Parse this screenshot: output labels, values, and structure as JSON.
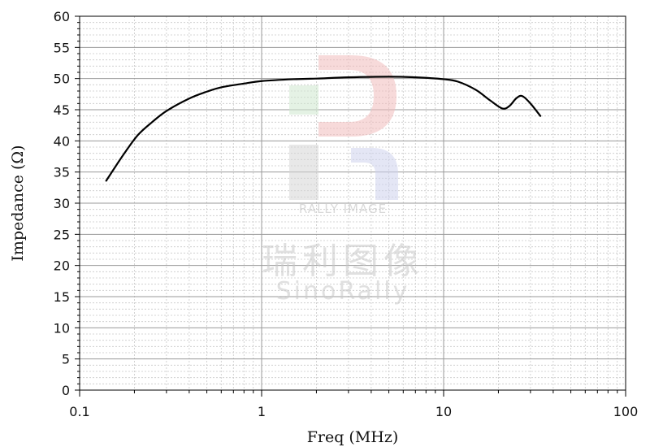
{
  "chart_data": {
    "type": "line",
    "xlabel": "Freq (MHz)",
    "ylabel": "Impedance (Ω)",
    "x_scale": "log",
    "xlim": [
      0.1,
      100
    ],
    "ylim": [
      0,
      60
    ],
    "x_ticks": [
      0.1,
      1,
      10,
      100
    ],
    "x_tick_labels": [
      "0.1",
      "1",
      "10",
      "100"
    ],
    "y_ticks": [
      0,
      5,
      10,
      15,
      20,
      25,
      30,
      35,
      40,
      45,
      50,
      55,
      60
    ],
    "y_tick_labels": [
      "0",
      "5",
      "10",
      "15",
      "20",
      "25",
      "30",
      "35",
      "40",
      "45",
      "50",
      "55",
      "60"
    ],
    "grid": true,
    "line_color": "#000000",
    "series": [
      {
        "x": [
          0.14,
          0.16,
          0.18,
          0.21,
          0.25,
          0.3,
          0.4,
          0.5,
          0.6,
          0.8,
          1.0,
          1.5,
          2.0,
          3.0,
          5.0,
          7.0,
          10.0,
          12.0,
          15.0,
          18.0,
          21.0,
          23.0,
          25.0,
          27.0,
          30.0,
          34.0
        ],
        "y": [
          33.6,
          36.2,
          38.4,
          41.0,
          43.0,
          44.8,
          46.8,
          47.9,
          48.6,
          49.2,
          49.6,
          49.9,
          50.0,
          50.2,
          50.3,
          50.2,
          49.9,
          49.5,
          48.2,
          46.5,
          45.2,
          45.6,
          46.8,
          47.2,
          46.0,
          44.0
        ]
      }
    ]
  },
  "watermark": {
    "brand_en": "RALLY IMAGE",
    "brand_cn": "瑞利图像",
    "brand_name": "SinoRally"
  }
}
